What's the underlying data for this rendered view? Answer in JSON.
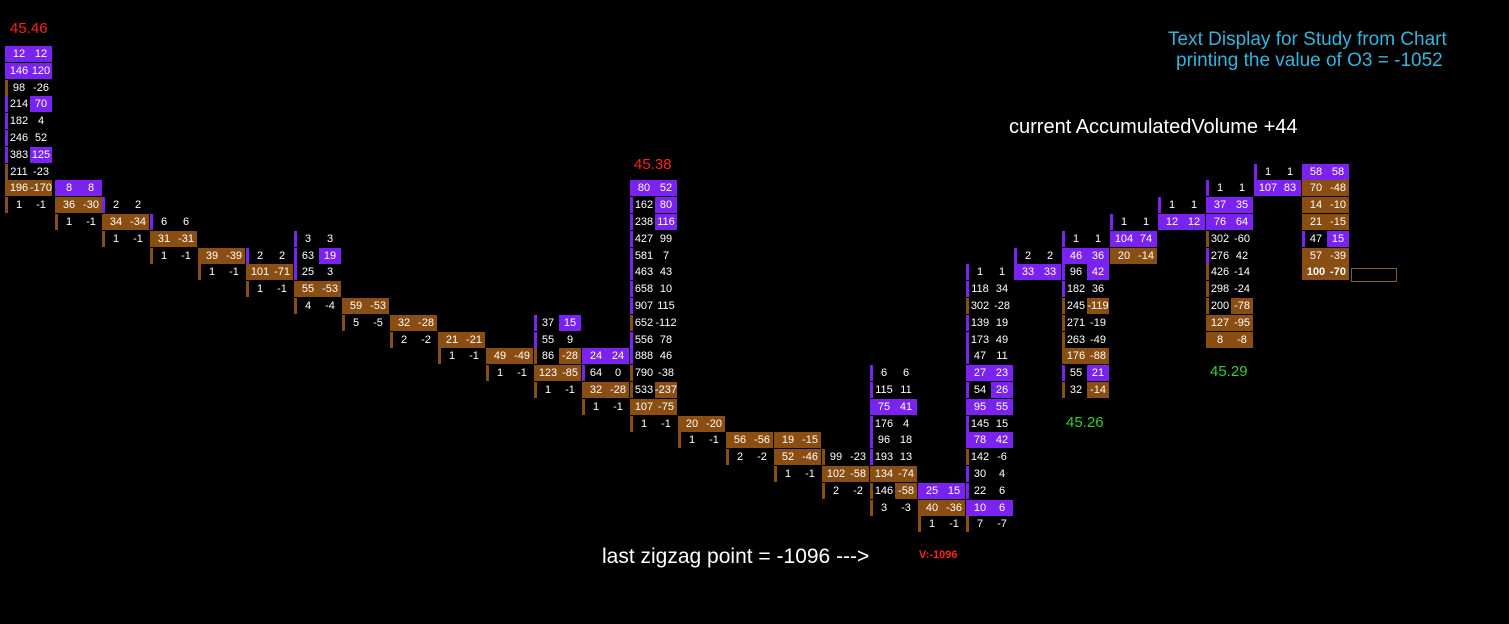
{
  "colors": {
    "purple": "#7a22f0",
    "brown": "#8a4d12",
    "red_text": "#ff2020",
    "green_text": "#30d030",
    "cyan_text": "#2fb6e0",
    "white_text": "#ffffff"
  },
  "texts": {
    "top_left_price": "45.46",
    "mid_high_price": "45.38",
    "low_price_1": "45.26",
    "low_price_2": "45.29",
    "study_text_line1": "Text Display for Study from Chart",
    "study_text_line2": "printing the value of O3 = -1052",
    "accum_volume": "current AccumulatedVolume  +44",
    "zigzag_text": "last zigzag point = -1096 --->",
    "zigzag_marker": "V:-1096"
  },
  "chart_data": {
    "type": "footprint",
    "columns": [
      {
        "rows": [
          [
            "12",
            "12"
          ],
          [
            "146",
            "120"
          ],
          [
            "98",
            "-26"
          ],
          [
            "214",
            "70"
          ],
          [
            "182",
            "4"
          ],
          [
            "246",
            "52"
          ],
          [
            "383",
            "125"
          ],
          [
            "211",
            "-23"
          ],
          [
            "196",
            "-170"
          ],
          [
            "1",
            "-1"
          ]
        ]
      },
      {
        "rows": [
          [
            "8",
            "8"
          ],
          [
            "36",
            "-30"
          ],
          [
            "1",
            "-1"
          ]
        ]
      },
      {
        "rows": [
          [
            "2",
            "2"
          ],
          [
            "34",
            "-34"
          ],
          [
            "1",
            "-1"
          ]
        ]
      },
      {
        "rows": [
          [
            "6",
            "6"
          ],
          [
            "31",
            "-31"
          ],
          [
            "1",
            "-1"
          ]
        ]
      },
      {
        "rows": [
          [
            "39",
            "-39"
          ],
          [
            "1",
            "-1"
          ]
        ]
      },
      {
        "rows": [
          [
            "2",
            "2"
          ],
          [
            "101",
            "-71"
          ],
          [
            "1",
            "-1"
          ]
        ]
      },
      {
        "rows": [
          [
            "3",
            "3"
          ],
          [
            "63",
            "19"
          ],
          [
            "25",
            "3"
          ],
          [
            "55",
            "-53"
          ],
          [
            "4",
            "-4"
          ]
        ]
      },
      {
        "rows": [
          [
            "59",
            "-53"
          ],
          [
            "5",
            "-5"
          ]
        ]
      },
      {
        "rows": [
          [
            "32",
            "-28"
          ],
          [
            "2",
            "-2"
          ]
        ]
      },
      {
        "rows": [
          [
            "21",
            "-21"
          ],
          [
            "1",
            "-1"
          ]
        ]
      },
      {
        "rows": [
          [
            "49",
            "-49"
          ],
          [
            "1",
            "-1"
          ]
        ]
      },
      {
        "rows": [
          [
            "37",
            "15"
          ],
          [
            "55",
            "9"
          ],
          [
            "86",
            "-28"
          ],
          [
            "123",
            "-85"
          ],
          [
            "1",
            "-1"
          ]
        ]
      },
      {
        "rows": [
          [
            "24",
            "24"
          ],
          [
            "64",
            "0"
          ],
          [
            "32",
            "-28"
          ],
          [
            "1",
            "-1"
          ]
        ]
      },
      {
        "rows": [
          [
            "80",
            "52"
          ],
          [
            "162",
            "80"
          ],
          [
            "238",
            "116"
          ],
          [
            "427",
            "99"
          ],
          [
            "581",
            "7"
          ],
          [
            "463",
            "43"
          ],
          [
            "658",
            "10"
          ],
          [
            "907",
            "115"
          ],
          [
            "652",
            "-112"
          ],
          [
            "556",
            "78"
          ],
          [
            "888",
            "46"
          ],
          [
            "790",
            "-38"
          ],
          [
            "533",
            "-237"
          ],
          [
            "107",
            "-75"
          ],
          [
            "1",
            "-1"
          ]
        ]
      },
      {
        "rows": [
          [
            "20",
            "-20"
          ],
          [
            "1",
            "-1"
          ]
        ]
      },
      {
        "rows": [
          [
            "56",
            "-56"
          ],
          [
            "2",
            "-2"
          ]
        ]
      },
      {
        "rows": [
          [
            "19",
            "-15"
          ],
          [
            "52",
            "-46"
          ],
          [
            "1",
            "-1"
          ]
        ]
      },
      {
        "rows": [
          [
            "99",
            "-23"
          ],
          [
            "102",
            "-58"
          ],
          [
            "2",
            "-2"
          ]
        ]
      },
      {
        "rows": [
          [
            "6",
            "6"
          ],
          [
            "115",
            "11"
          ],
          [
            "75",
            "41"
          ],
          [
            "176",
            "4"
          ],
          [
            "96",
            "18"
          ],
          [
            "193",
            "13"
          ],
          [
            "134",
            "-74"
          ],
          [
            "146",
            "-58"
          ],
          [
            "3",
            "-3"
          ]
        ]
      },
      {
        "rows": [
          [
            "25",
            "15"
          ],
          [
            "40",
            "-36"
          ],
          [
            "1",
            "-1"
          ]
        ]
      },
      {
        "rows": [
          [
            "1",
            "1"
          ],
          [
            "118",
            "34"
          ],
          [
            "302",
            "-28"
          ],
          [
            "139",
            "19"
          ],
          [
            "173",
            "49"
          ],
          [
            "47",
            "11"
          ],
          [
            "27",
            "23"
          ],
          [
            "54",
            "26"
          ],
          [
            "95",
            "55"
          ],
          [
            "145",
            "15"
          ],
          [
            "78",
            "42"
          ],
          [
            "142",
            "-6"
          ],
          [
            "30",
            "4"
          ],
          [
            "22",
            "6"
          ],
          [
            "10",
            "6"
          ],
          [
            "7",
            "-7"
          ]
        ]
      },
      {
        "rows": [
          [
            "2",
            "2"
          ],
          [
            "33",
            "33"
          ]
        ]
      },
      {
        "rows": [
          [
            "1",
            "1"
          ],
          [
            "46",
            "36"
          ],
          [
            "96",
            "42"
          ],
          [
            "182",
            "36"
          ],
          [
            "245",
            "-119"
          ],
          [
            "271",
            "-19"
          ],
          [
            "263",
            "-49"
          ],
          [
            "176",
            "-88"
          ],
          [
            "55",
            "21"
          ],
          [
            "32",
            "-14"
          ]
        ]
      },
      {
        "rows": [
          [
            "1",
            "1"
          ],
          [
            "104",
            "74"
          ],
          [
            "20",
            "-14"
          ]
        ]
      },
      {
        "rows": [
          [
            "1",
            "1"
          ],
          [
            "12",
            "12"
          ]
        ]
      },
      {
        "rows": [
          [
            "1",
            "1"
          ],
          [
            "37",
            "35"
          ],
          [
            "76",
            "64"
          ],
          [
            "302",
            "-60"
          ],
          [
            "276",
            "42"
          ],
          [
            "426",
            "-14"
          ],
          [
            "298",
            "-24"
          ],
          [
            "200",
            "-78"
          ],
          [
            "127",
            "-95"
          ],
          [
            "8",
            "-8"
          ]
        ]
      },
      {
        "rows": [
          [
            "1",
            "1"
          ],
          [
            "107",
            "83"
          ]
        ]
      },
      {
        "rows": [
          [
            "58",
            "58"
          ],
          [
            "70",
            "-48"
          ],
          [
            "14",
            "-10"
          ],
          [
            "21",
            "-15"
          ],
          [
            "47",
            "15"
          ],
          [
            "57",
            "-39"
          ],
          [
            "100",
            "-70"
          ]
        ]
      }
    ]
  }
}
